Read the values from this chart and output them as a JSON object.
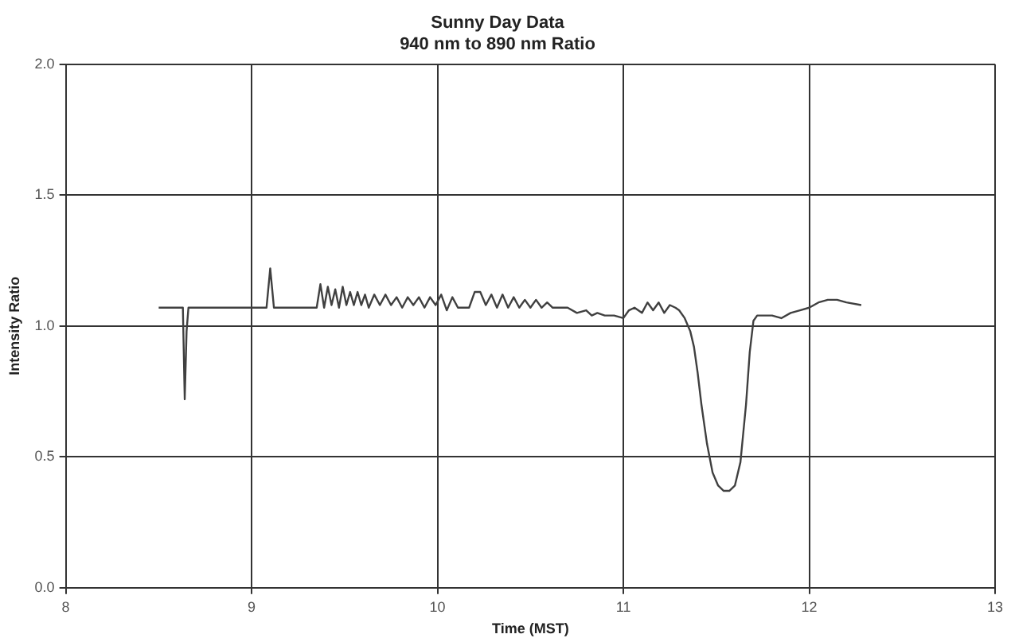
{
  "chart_data": {
    "type": "line",
    "title": "Sunny Day Data",
    "subtitle": "940 nm to 890 nm Ratio",
    "xlabel": "Time (MST)",
    "ylabel": "Intensity Ratio",
    "series": [
      {
        "color": "#404040",
        "x": [
          8.5,
          8.63,
          8.64,
          8.65,
          8.66,
          8.67,
          9.0,
          9.08,
          9.1,
          9.12,
          9.14,
          9.35,
          9.37,
          9.39,
          9.41,
          9.43,
          9.45,
          9.47,
          9.49,
          9.51,
          9.53,
          9.55,
          9.57,
          9.59,
          9.61,
          9.63,
          9.66,
          9.69,
          9.72,
          9.75,
          9.78,
          9.81,
          9.84,
          9.87,
          9.9,
          9.93,
          9.96,
          9.99,
          10.02,
          10.05,
          10.08,
          10.11,
          10.14,
          10.17,
          10.2,
          10.23,
          10.26,
          10.29,
          10.32,
          10.35,
          10.38,
          10.41,
          10.44,
          10.47,
          10.5,
          10.53,
          10.56,
          10.59,
          10.62,
          10.65,
          10.7,
          10.75,
          10.8,
          10.83,
          10.86,
          10.9,
          10.95,
          11.0,
          11.03,
          11.06,
          11.1,
          11.13,
          11.16,
          11.19,
          11.22,
          11.25,
          11.28,
          11.3,
          11.33,
          11.36,
          11.38,
          11.4,
          11.42,
          11.45,
          11.48,
          11.51,
          11.54,
          11.57,
          11.6,
          11.63,
          11.66,
          11.68,
          11.7,
          11.72,
          11.75,
          11.8,
          11.85,
          11.9,
          11.95,
          12.0,
          12.05,
          12.1,
          12.15,
          12.2,
          12.28
        ],
        "values": [
          1.07,
          1.07,
          0.72,
          0.98,
          1.07,
          1.07,
          1.07,
          1.07,
          1.22,
          1.07,
          1.07,
          1.07,
          1.16,
          1.07,
          1.15,
          1.08,
          1.14,
          1.07,
          1.15,
          1.08,
          1.13,
          1.08,
          1.13,
          1.08,
          1.12,
          1.07,
          1.12,
          1.08,
          1.12,
          1.08,
          1.11,
          1.07,
          1.11,
          1.08,
          1.11,
          1.07,
          1.11,
          1.08,
          1.12,
          1.06,
          1.11,
          1.07,
          1.07,
          1.07,
          1.13,
          1.13,
          1.08,
          1.12,
          1.07,
          1.12,
          1.07,
          1.11,
          1.07,
          1.1,
          1.07,
          1.1,
          1.07,
          1.09,
          1.07,
          1.07,
          1.07,
          1.05,
          1.06,
          1.04,
          1.05,
          1.04,
          1.04,
          1.03,
          1.06,
          1.07,
          1.05,
          1.09,
          1.06,
          1.09,
          1.05,
          1.08,
          1.07,
          1.06,
          1.03,
          0.98,
          0.92,
          0.82,
          0.7,
          0.55,
          0.44,
          0.39,
          0.37,
          0.37,
          0.39,
          0.48,
          0.7,
          0.9,
          1.02,
          1.04,
          1.04,
          1.04,
          1.03,
          1.05,
          1.06,
          1.07,
          1.09,
          1.1,
          1.1,
          1.09,
          1.08
        ]
      }
    ],
    "xlim": [
      8,
      13
    ],
    "xticks": [
      8,
      9,
      10,
      11,
      12,
      13
    ],
    "ylim": [
      0,
      2
    ],
    "yticks": [
      {
        "value": 0,
        "label": "0.0"
      },
      {
        "value": 0.5,
        "label": "0.5"
      },
      {
        "value": 1,
        "label": "1.0"
      },
      {
        "value": 1.5,
        "label": "1.5"
      },
      {
        "value": 2,
        "label": "2.0"
      }
    ],
    "grid": true,
    "legend": false,
    "marker": "none",
    "line_style": "solid"
  }
}
